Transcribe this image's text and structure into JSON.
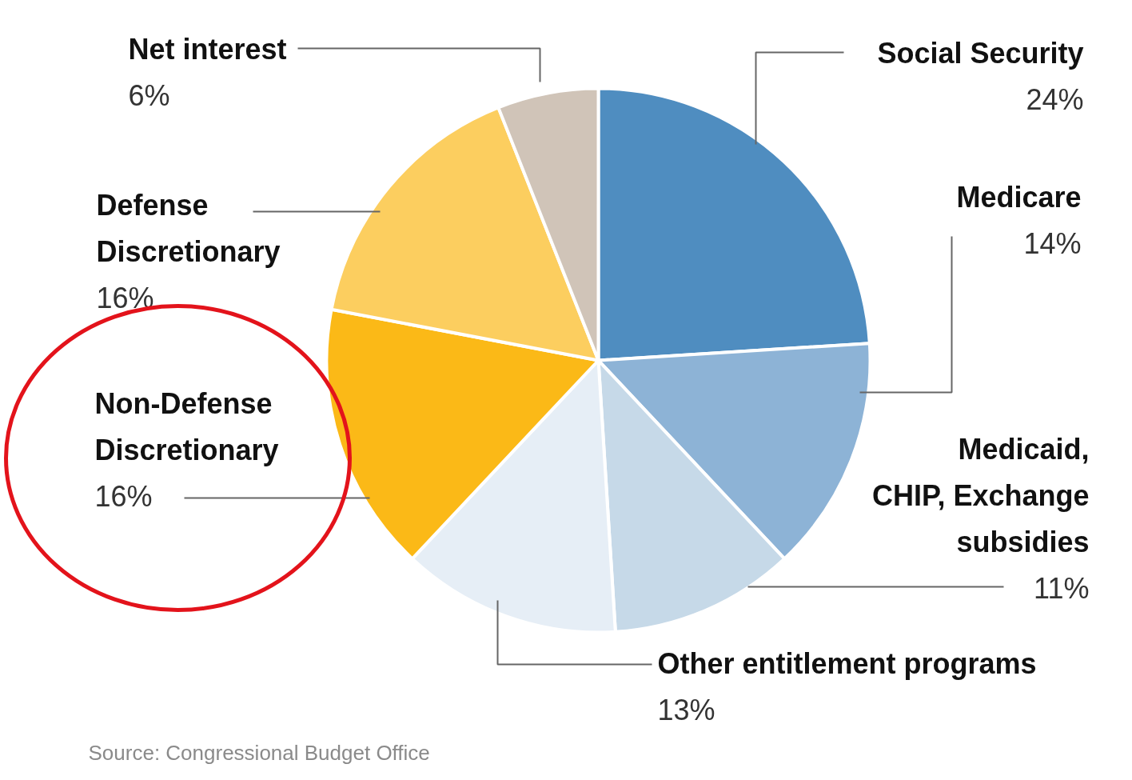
{
  "chart_data": {
    "type": "pie",
    "categories": [
      "Social Security",
      "Medicare",
      "Medicaid, CHIP, Exchange subsidies",
      "Other entitlement programs",
      "Non-Defense Discretionary",
      "Defense Discretionary",
      "Net interest"
    ],
    "values": [
      24,
      14,
      11,
      13,
      16,
      16,
      6
    ],
    "value_labels": [
      "24%",
      "14%",
      "11%",
      "13%",
      "16%",
      "16%",
      "6%"
    ],
    "colors": [
      "#4f8dc0",
      "#8db3d6",
      "#c6d9e8",
      "#e6eef6",
      "#fbb917",
      "#fcce5f",
      "#d0c4b8"
    ],
    "annotations": [
      "Source: Congressional Budget Office"
    ]
  }
}
